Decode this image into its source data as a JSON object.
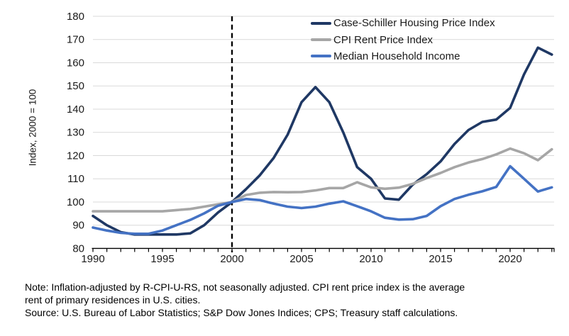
{
  "figure": {
    "y_axis_title": "Index, 2000 = 100",
    "notes": {
      "note_line1": "Note: Inflation-adjusted by R-CPI-U-RS, not seasonally adjusted. CPI rent price index is the average",
      "note_line2": "rent of primary residences in U.S. cities.",
      "source_line": "Source: U.S. Bureau of Labor Statistics; S&P Dow Jones Indices; CPS; Treasury staff calculations."
    }
  },
  "chart_data": {
    "type": "line",
    "title": "",
    "xlabel": "",
    "ylabel": "Index, 2000 = 100",
    "xlim": [
      1990,
      2023.3
    ],
    "ylim": [
      80,
      180
    ],
    "grid": "horizontal",
    "legend_position": "top-right",
    "reference_line_x": 2000,
    "reference_line_style": "black dashed vertical",
    "y_ticks": [
      80,
      90,
      100,
      110,
      120,
      130,
      140,
      150,
      160,
      170,
      180
    ],
    "x_ticks": [
      1990,
      1995,
      2000,
      2005,
      2010,
      2015,
      2020
    ],
    "x": [
      1990,
      1991,
      1992,
      1993,
      1994,
      1995,
      1996,
      1997,
      1998,
      1999,
      2000,
      2001,
      2002,
      2003,
      2004,
      2005,
      2006,
      2007,
      2008,
      2009,
      2010,
      2011,
      2012,
      2013,
      2014,
      2015,
      2016,
      2017,
      2018,
      2019,
      2020,
      2021,
      2022,
      2023
    ],
    "series": [
      {
        "name": "Case-Schiller Housing Price Index",
        "color": "#1f3864",
        "values": [
          94,
          90,
          87,
          86,
          86,
          86,
          86,
          86.5,
          90,
          95.5,
          100,
          105.5,
          111.5,
          119,
          129,
          143,
          149.5,
          143,
          130,
          115,
          110,
          101.5,
          101,
          107.5,
          112,
          117.5,
          125,
          131,
          134.5,
          135.5,
          140.5,
          155,
          166.5,
          163.5
        ]
      },
      {
        "name": "CPI Rent Price Index",
        "color": "#a6a6a6",
        "values": [
          96,
          96,
          96,
          96,
          96,
          96,
          96.5,
          97,
          98,
          99,
          100,
          103,
          104,
          104.3,
          104.2,
          104.3,
          105,
          106,
          106,
          108.5,
          106.3,
          105.7,
          106.2,
          107.8,
          110.3,
          112.5,
          115,
          117,
          118.5,
          120.5,
          123,
          121,
          118,
          122.7
        ]
      },
      {
        "name": "Median Household Income",
        "color": "#4472c4",
        "values": [
          89,
          87.7,
          86.7,
          86.3,
          86.3,
          87.7,
          90,
          92.3,
          95.1,
          98.4,
          100,
          101.3,
          100.8,
          99.3,
          98,
          97.4,
          98,
          99.3,
          100.3,
          98.2,
          96,
          93.2,
          92.4,
          92.6,
          94,
          98.2,
          101.3,
          103.1,
          104.6,
          106.5,
          115.4,
          110,
          104.5,
          106.3
        ]
      }
    ]
  }
}
